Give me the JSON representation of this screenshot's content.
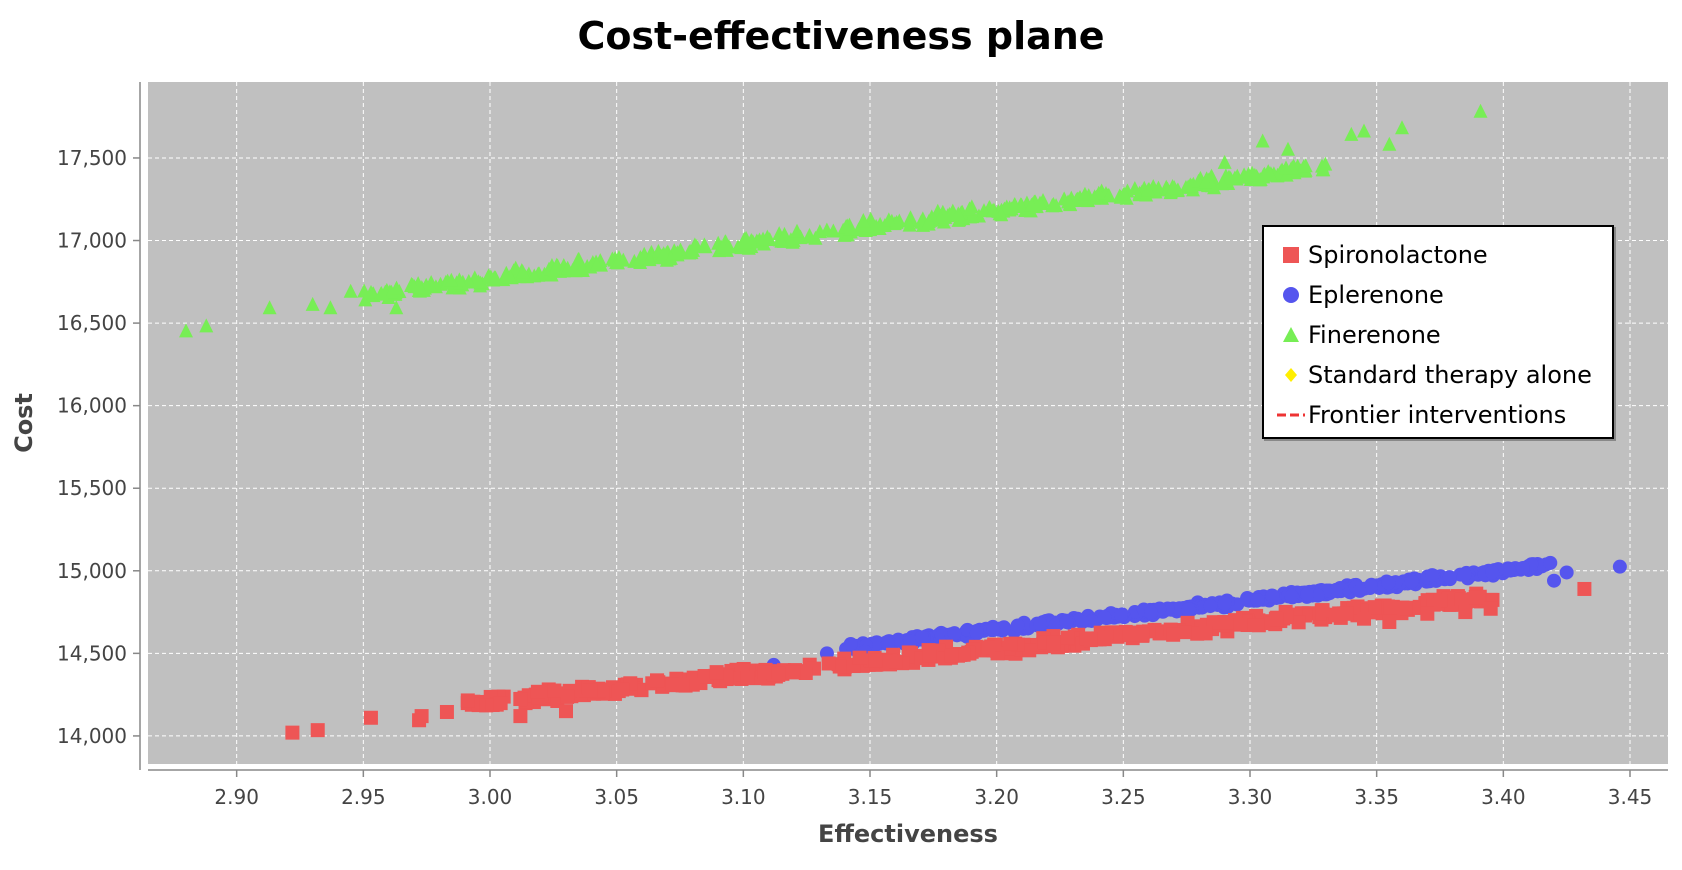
{
  "chart_data": {
    "type": "scatter",
    "title": "Cost-effectiveness plane",
    "xlabel": "Effectiveness",
    "ylabel": "Cost",
    "xlim": [
      2.865,
      3.465
    ],
    "ylim": [
      13830,
      17960
    ],
    "x_ticks": [
      "2.90",
      "2.95",
      "3.00",
      "3.05",
      "3.10",
      "3.15",
      "3.20",
      "3.25",
      "3.30",
      "3.35",
      "3.40",
      "3.45"
    ],
    "y_ticks": [
      "14,000",
      "14,500",
      "15,000",
      "15,500",
      "16,000",
      "16,500",
      "17,000",
      "17,500"
    ],
    "grid": true,
    "legend_position": "right",
    "series": [
      {
        "name": "Spironolactone",
        "color": "#ee5555",
        "marker": "square",
        "trend": {
          "x_min": 2.99,
          "x_max": 3.4,
          "slope": 1612,
          "intercept": 9367,
          "spread": 55
        },
        "points": [
          [
            2.922,
            14020
          ],
          [
            2.932,
            14035
          ],
          [
            2.953,
            14110
          ],
          [
            2.972,
            14095
          ],
          [
            2.973,
            14120
          ],
          [
            2.983,
            14145
          ],
          [
            3.012,
            14120
          ],
          [
            3.03,
            14150
          ],
          [
            3.345,
            14710
          ],
          [
            3.355,
            14690
          ],
          [
            3.37,
            14740
          ],
          [
            3.385,
            14750
          ],
          [
            3.395,
            14770
          ],
          [
            3.432,
            14890
          ]
        ]
      },
      {
        "name": "Eplerenone",
        "color": "#5555ee",
        "marker": "circle",
        "trend": {
          "x_min": 3.14,
          "x_max": 3.42,
          "slope": 1786,
          "intercept": 8928,
          "spread": 30
        },
        "points": [
          [
            3.112,
            14430
          ],
          [
            3.133,
            14500
          ],
          [
            3.148,
            14510
          ],
          [
            3.42,
            14940
          ],
          [
            3.425,
            14990
          ],
          [
            3.446,
            15025
          ]
        ]
      },
      {
        "name": "Finerenone",
        "color": "#77ee55",
        "marker": "triangle",
        "trend": {
          "x_min": 2.95,
          "x_max": 3.33,
          "slope": 2050,
          "intercept": 10620,
          "spread": 55
        },
        "points": [
          [
            2.88,
            16450
          ],
          [
            2.888,
            16480
          ],
          [
            2.913,
            16590
          ],
          [
            2.93,
            16610
          ],
          [
            2.937,
            16590
          ],
          [
            2.945,
            16690
          ],
          [
            2.963,
            16590
          ],
          [
            3.29,
            17470
          ],
          [
            3.305,
            17600
          ],
          [
            3.315,
            17550
          ],
          [
            3.322,
            17450
          ],
          [
            3.34,
            17640
          ],
          [
            3.345,
            17660
          ],
          [
            3.355,
            17580
          ],
          [
            3.36,
            17680
          ],
          [
            3.391,
            17780
          ]
        ]
      },
      {
        "name": "Standard therapy alone",
        "color": "#ffee00",
        "marker": "diamond",
        "points": []
      },
      {
        "name": "Frontier interventions",
        "color": "#ee3333",
        "marker": "dashed-line",
        "points": []
      }
    ]
  }
}
